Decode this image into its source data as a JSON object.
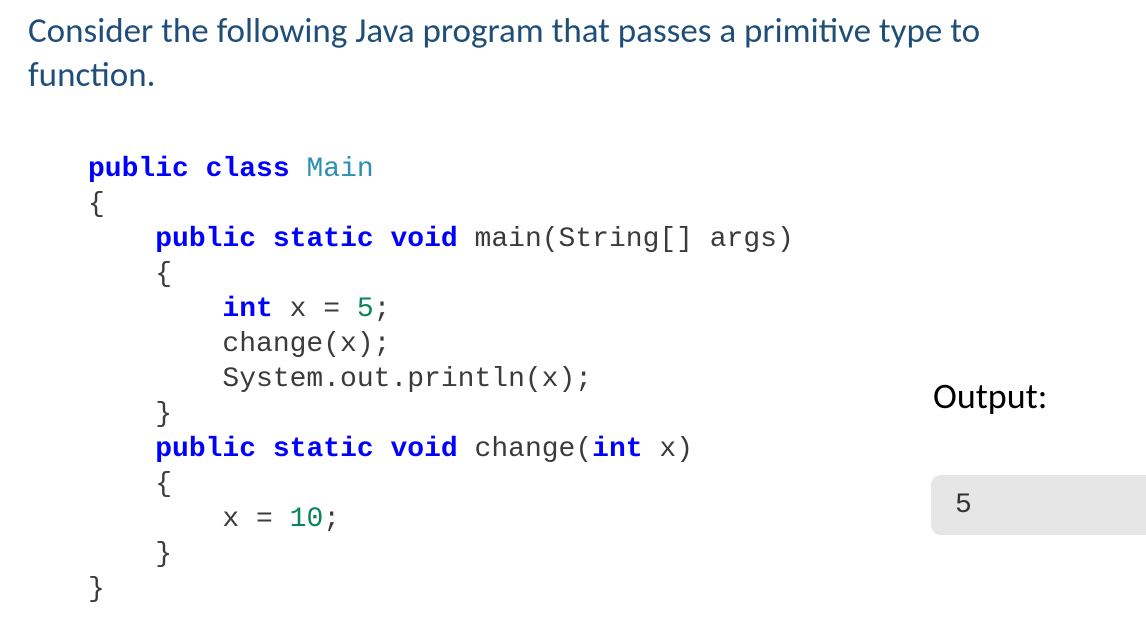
{
  "heading": "Consider the following Java program that passes a primitive type to function.",
  "code": {
    "l1_kw1": "public",
    "l1_kw2": "class",
    "l1_cls": "Main",
    "l2": "{",
    "l3_kw1": "public",
    "l3_kw2": "static",
    "l3_kw3": "void",
    "l3_mtd": "main",
    "l3_sig": "(String[] args)",
    "l4": "    {",
    "l5_kw": "int",
    "l5_rest": " x = ",
    "l5_num": "5",
    "l5_semi": ";",
    "l6": "        change(x);",
    "l7": "        System.out.println(x);",
    "l8": "    }",
    "l9_kw1": "public",
    "l9_kw2": "static",
    "l9_kw3": "void",
    "l9_mtd": "change",
    "l9_sig_kw": "int",
    "l9_sig_a": "(",
    "l9_sig_b": " x)",
    "l10": "    {",
    "l11_a": "        x = ",
    "l11_num": "10",
    "l11_semi": ";",
    "l12": "    }",
    "l13": "}"
  },
  "output": {
    "label": "Output:",
    "value": "5"
  },
  "colors": {
    "heading": "#1f4e79",
    "keyword": "#0000ff",
    "classname": "#2b91af",
    "number": "#098658",
    "text": "#3b3b3b",
    "output_box_bg": "#e7e6e6",
    "background": "#ffffff"
  }
}
